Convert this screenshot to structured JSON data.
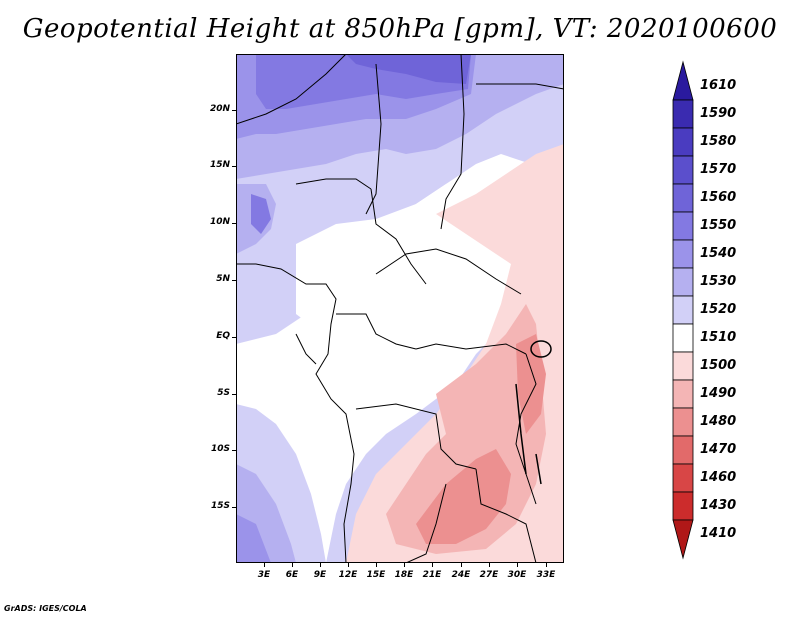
{
  "title": "Geopotential Height at 850hPa [gpm], VT: 2020100600",
  "credit": "GrADS: IGES/COLA",
  "map": {
    "lat_labels": [
      "20N",
      "15N",
      "10N",
      "5N",
      "EQ",
      "5S",
      "10S",
      "15S"
    ],
    "lon_labels": [
      "3E",
      "6E",
      "9E",
      "12E",
      "15E",
      "18E",
      "21E",
      "24E",
      "27E",
      "30E",
      "33E"
    ]
  },
  "colorbar": {
    "levels": [
      "1610",
      "1590",
      "1580",
      "1570",
      "1560",
      "1550",
      "1540",
      "1530",
      "1520",
      "1510",
      "1500",
      "1490",
      "1480",
      "1470",
      "1460",
      "1430",
      "1410"
    ],
    "colors": [
      "#2a1a9e",
      "#3a2bb0",
      "#4a3cc0",
      "#5b4fcc",
      "#6f64d8",
      "#8379e2",
      "#9b93ea",
      "#b5b0f0",
      "#d2d0f7",
      "#ffffff",
      "#fbdada",
      "#f4b5b5",
      "#ec9090",
      "#e26a6a",
      "#d84646",
      "#cc2c2c",
      "#b01818"
    ]
  }
}
